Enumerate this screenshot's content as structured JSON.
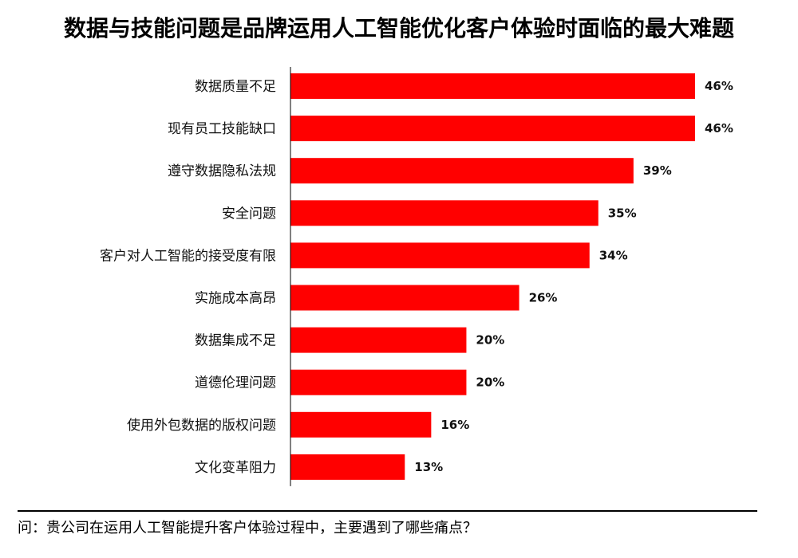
{
  "chart_data": {
    "type": "bar",
    "orientation": "horizontal",
    "title": "数据与技能问题是品牌运用人工智能优化客户体验时面临的最大难题",
    "categories": [
      "数据质量不足",
      "现有员工技能缺口",
      "遵守数据隐私法规",
      "安全问题",
      "客户对人工智能的接受度有限",
      "实施成本高昂",
      "数据集成不足",
      "道德伦理问题",
      "使用外包数据的版权问题",
      "文化变革阻力"
    ],
    "values": [
      46,
      46,
      39,
      35,
      34,
      26,
      20,
      20,
      16,
      13
    ],
    "value_labels": [
      "46%",
      "46%",
      "39%",
      "35%",
      "34%",
      "26%",
      "20%",
      "20%",
      "16%",
      "13%"
    ],
    "unit": "%",
    "bar_color": "#ff0000",
    "grid": false,
    "legend": "none"
  },
  "footer": {
    "note": "问：贵公司在运用人工智能提升客户体验过程中，主要遇到了哪些痛点？"
  }
}
